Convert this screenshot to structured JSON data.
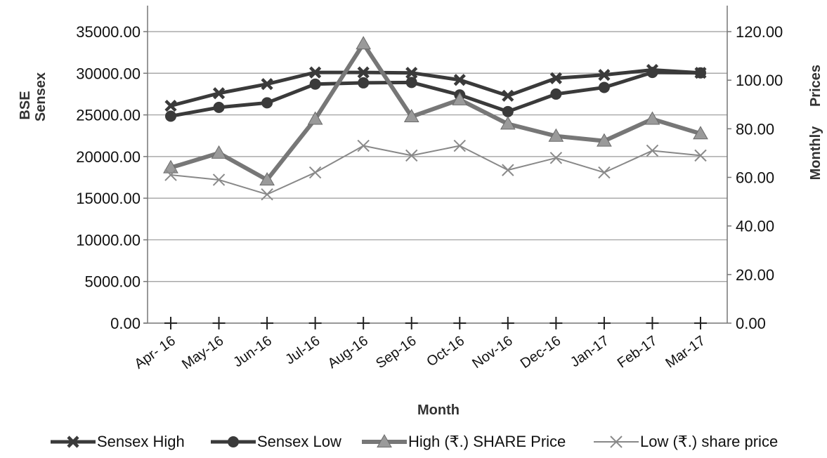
{
  "chart_data": {
    "type": "line",
    "xlabel": "Month",
    "ylabel_left": [
      "BSE",
      "Sensex"
    ],
    "ylabel_right": [
      "Monthly",
      "Prices"
    ],
    "categories": [
      "Apr- 16",
      "May-16",
      "Jun-16",
      "Jul-16",
      "Aug-16",
      "Sep-16",
      "Oct-16",
      "Nov-16",
      "Dec-16",
      "Jan-17",
      "Feb-17",
      "Mar-17"
    ],
    "left_axis": {
      "ylim": [
        0,
        35000
      ],
      "ticks": [
        "0.00",
        "5000.00",
        "10000.00",
        "15000.00",
        "20000.00",
        "25000.00",
        "30000.00",
        "35000.00"
      ]
    },
    "right_axis": {
      "ylim": [
        0,
        120
      ],
      "ticks": [
        "0.00",
        "20.00",
        "40.00",
        "60.00",
        "80.00",
        "100.00",
        "120.00"
      ]
    },
    "grid": true,
    "legend_position": "bottom",
    "series": [
      {
        "name": "Sensex High",
        "axis": "left",
        "marker": "x-bold",
        "color": "#3a3a3a",
        "values": [
          26100,
          27600,
          28700,
          30100,
          30100,
          30050,
          29200,
          27300,
          29400,
          29800,
          30400,
          30050
        ]
      },
      {
        "name": "Sensex Low",
        "axis": "left",
        "marker": "circle",
        "color": "#3a3a3a",
        "values": [
          24850,
          25900,
          26450,
          28700,
          28850,
          28900,
          27400,
          25400,
          27500,
          28300,
          30100,
          30050
        ]
      },
      {
        "name": "High (₹.)  SHARE Price",
        "axis": "right",
        "marker": "triangle",
        "color": "#777777",
        "values": [
          64,
          70,
          59,
          84,
          115,
          85,
          92,
          82,
          77,
          75,
          84,
          78
        ]
      },
      {
        "name": "Low (₹.) share price",
        "axis": "right",
        "marker": "x-thin",
        "color": "#888888",
        "values": [
          61,
          59,
          53,
          62,
          73,
          69,
          73,
          63,
          68,
          62,
          71,
          69
        ]
      },
      {
        "name": "",
        "axis": "left",
        "marker": "plus",
        "color": "#222222",
        "values": [
          0,
          0,
          0,
          0,
          0,
          0,
          0,
          0,
          0,
          0,
          0,
          0
        ]
      }
    ]
  }
}
